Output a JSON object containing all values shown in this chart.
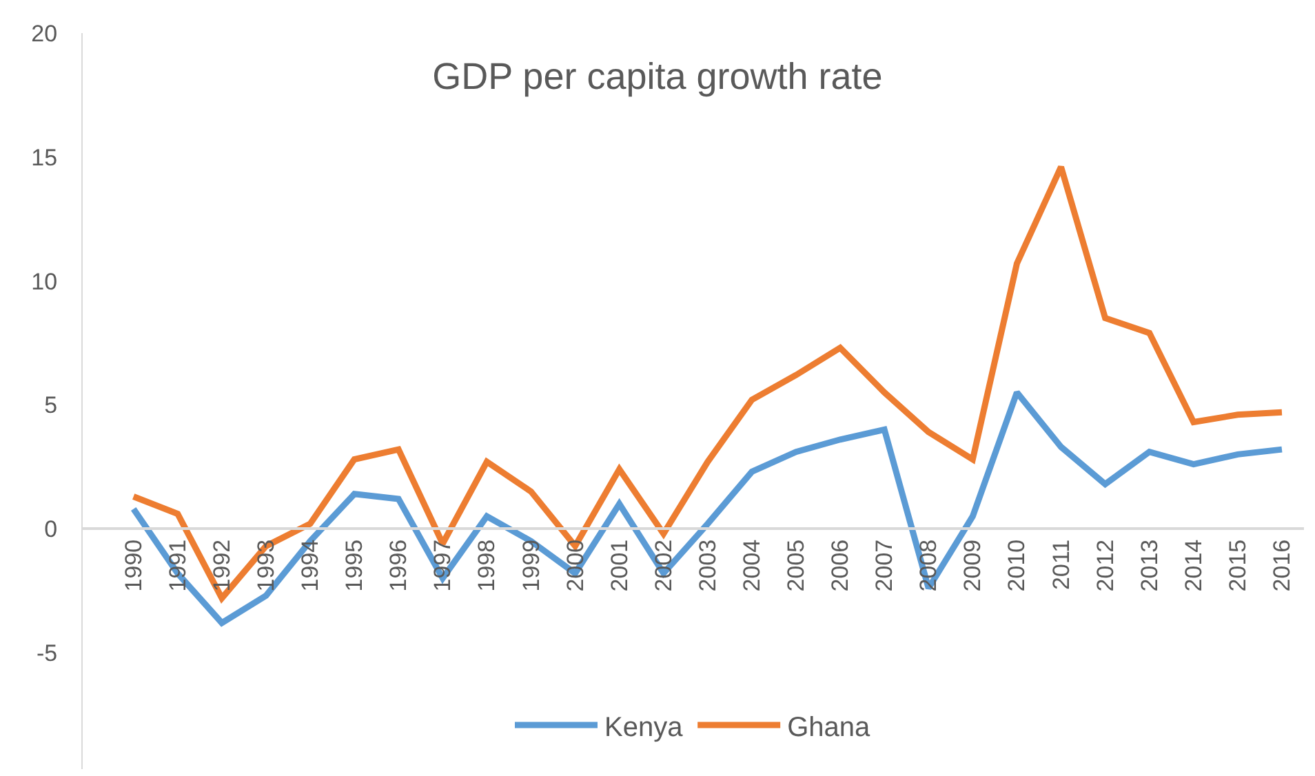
{
  "chart_data": {
    "type": "line",
    "title": "GDP per capita growth rate",
    "categories": [
      "1990",
      "1991",
      "1992",
      "1993",
      "1994",
      "1995",
      "1996",
      "1997",
      "1998",
      "1999",
      "2000",
      "2001",
      "2002",
      "2003",
      "2004",
      "2005",
      "2006",
      "2007",
      "2008",
      "2009",
      "2010",
      "2011",
      "2012",
      "2013",
      "2014",
      "2015",
      "2016"
    ],
    "series": [
      {
        "name": "Kenya",
        "color": "#5b9bd5",
        "values": [
          0.8,
          -1.8,
          -3.8,
          -2.7,
          -0.5,
          1.4,
          1.2,
          -2.0,
          0.5,
          -0.5,
          -1.8,
          1.0,
          -1.8,
          0.2,
          2.3,
          3.1,
          3.6,
          4.0,
          -2.4,
          0.5,
          5.5,
          3.3,
          1.8,
          3.1,
          2.6,
          3.0,
          3.2
        ]
      },
      {
        "name": "Ghana",
        "color": "#ed7d31",
        "values": [
          1.3,
          0.6,
          -2.8,
          -0.7,
          0.2,
          2.8,
          3.2,
          -0.6,
          2.7,
          1.5,
          -0.7,
          2.4,
          -0.2,
          2.7,
          5.2,
          6.2,
          7.3,
          5.5,
          3.9,
          2.8,
          10.7,
          14.6,
          8.5,
          7.9,
          4.3,
          4.6,
          4.7
        ]
      }
    ],
    "ylim": [
      -9.7,
      20
    ],
    "yticks": [
      -5,
      0,
      5,
      10,
      15,
      20
    ],
    "grid": false,
    "legend": "bottom",
    "marker": "none",
    "line_style": "solid"
  }
}
